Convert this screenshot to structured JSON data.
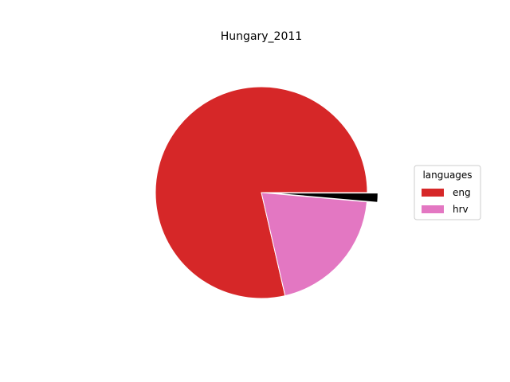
{
  "chart_data": {
    "type": "pie",
    "title": "Hungary_2011",
    "legend_title": "languages",
    "legend_position": "right",
    "slices": [
      {
        "label": "eng",
        "value": 78.6,
        "color": "#d62728"
      },
      {
        "label": "hrv",
        "value": 20.0,
        "color": "#e377c2"
      },
      {
        "label": "",
        "value": 1.4,
        "color": "#000000",
        "explode": 0.1
      }
    ]
  }
}
